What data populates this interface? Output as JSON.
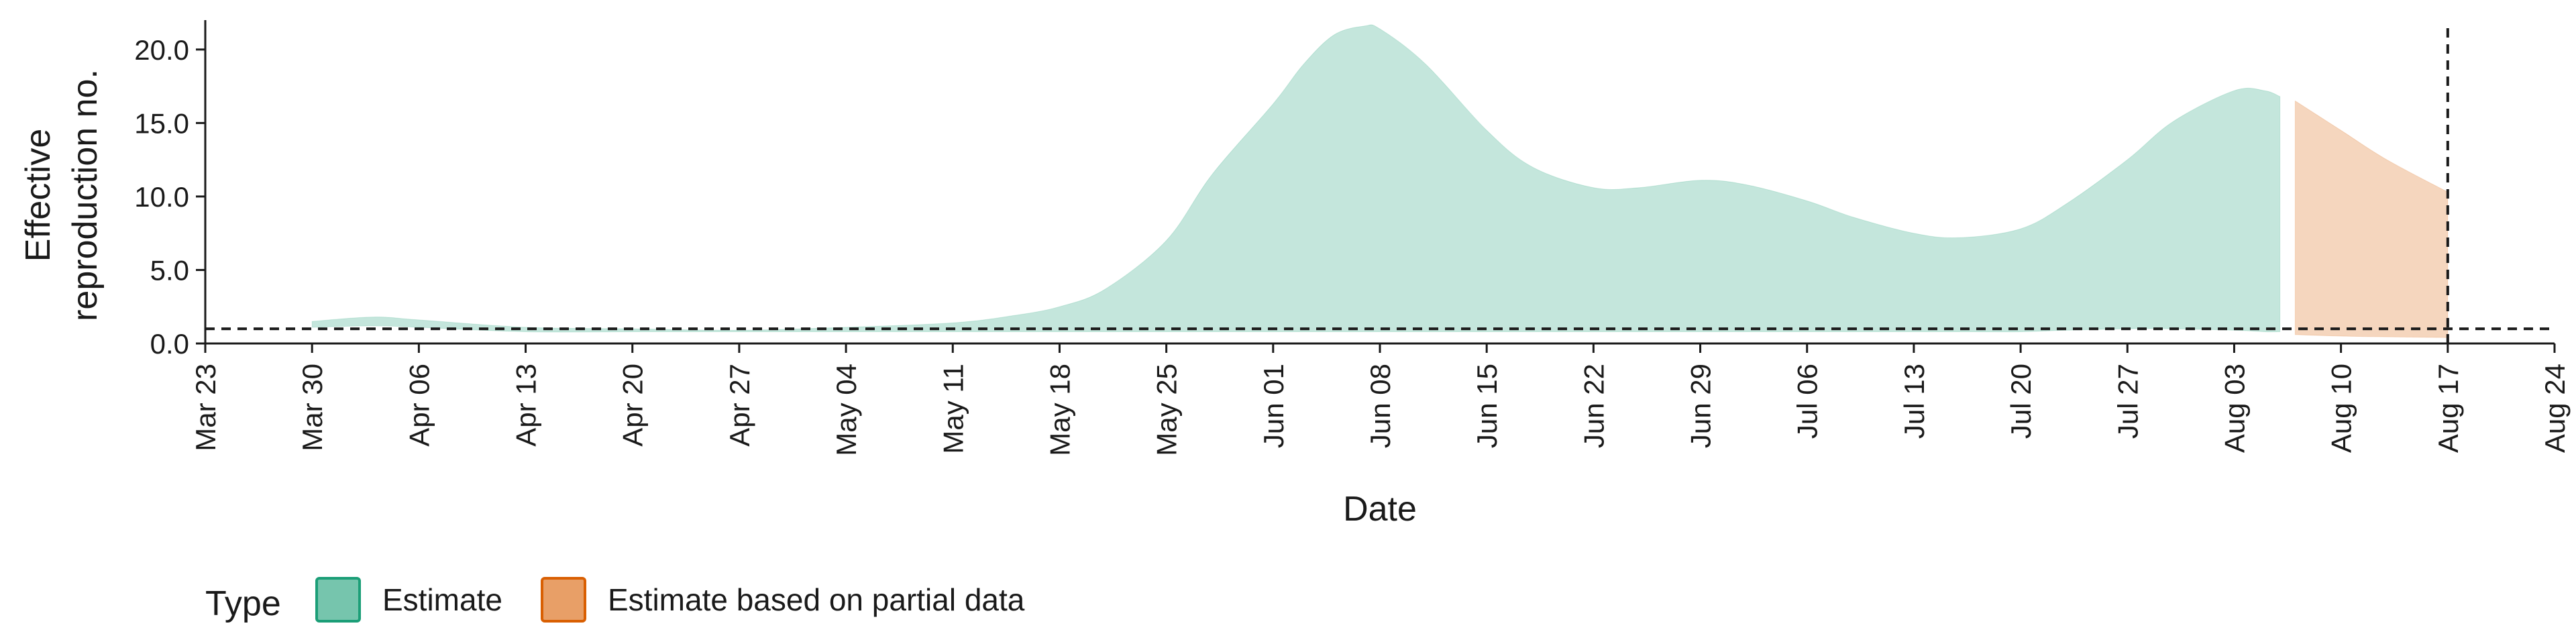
{
  "chart_data": {
    "type": "area",
    "xlabel": "Date",
    "ylabel_lines": [
      "Effective",
      "reproduction no."
    ],
    "ylim": [
      0,
      22
    ],
    "yticks": [
      0,
      5,
      10,
      15,
      20
    ],
    "ytick_labels": [
      "0.0",
      "5.0",
      "10.0",
      "15.0",
      "20.0"
    ],
    "xlim": [
      "2020-03-23",
      "2020-08-24"
    ],
    "xticks": [
      "2020-03-23",
      "2020-03-30",
      "2020-04-06",
      "2020-04-13",
      "2020-04-20",
      "2020-04-27",
      "2020-05-04",
      "2020-05-11",
      "2020-05-18",
      "2020-05-25",
      "2020-06-01",
      "2020-06-08",
      "2020-06-15",
      "2020-06-22",
      "2020-06-29",
      "2020-07-06",
      "2020-07-13",
      "2020-07-20",
      "2020-07-27",
      "2020-08-03",
      "2020-08-10",
      "2020-08-17",
      "2020-08-24"
    ],
    "xtick_labels": [
      "Mar 23",
      "Mar 30",
      "Apr 06",
      "Apr 13",
      "Apr 20",
      "Apr 27",
      "May 04",
      "May 11",
      "May 18",
      "May 25",
      "Jun 01",
      "Jun 08",
      "Jun 15",
      "Jun 22",
      "Jun 29",
      "Jul 06",
      "Jul 13",
      "Jul 20",
      "Jul 27",
      "Aug 03",
      "Aug 10",
      "Aug 17",
      "Aug 24"
    ],
    "hline": 1.0,
    "vline": "2020-08-17",
    "series": [
      {
        "name": "Estimate",
        "color": "#1b9e77",
        "x": [
          "2020-03-30",
          "2020-04-03",
          "2020-04-06",
          "2020-04-13",
          "2020-04-20",
          "2020-04-27",
          "2020-05-04",
          "2020-05-11",
          "2020-05-15",
          "2020-05-18",
          "2020-05-21",
          "2020-05-25",
          "2020-05-28",
          "2020-06-01",
          "2020-06-03",
          "2020-06-05",
          "2020-06-07",
          "2020-06-08",
          "2020-06-11",
          "2020-06-15",
          "2020-06-18",
          "2020-06-22",
          "2020-06-25",
          "2020-06-29",
          "2020-07-02",
          "2020-07-06",
          "2020-07-09",
          "2020-07-13",
          "2020-07-16",
          "2020-07-20",
          "2020-07-23",
          "2020-07-27",
          "2020-07-30",
          "2020-08-03",
          "2020-08-05",
          "2020-08-06"
        ],
        "upper": [
          1.5,
          1.8,
          1.6,
          1.1,
          1.0,
          0.9,
          1.1,
          1.4,
          1.9,
          2.5,
          3.7,
          7.0,
          11.5,
          16.3,
          19.0,
          21.0,
          21.6,
          21.4,
          19.0,
          14.5,
          12.0,
          10.6,
          10.6,
          11.1,
          10.8,
          9.7,
          8.6,
          7.5,
          7.2,
          7.8,
          9.5,
          12.5,
          15.1,
          17.2,
          17.2,
          16.8
        ],
        "lower": [
          1.1,
          1.2,
          1.1,
          0.8,
          0.8,
          0.8,
          0.8,
          0.8,
          0.8,
          0.8,
          0.8,
          0.8,
          0.8,
          0.8,
          0.8,
          0.8,
          0.8,
          0.8,
          0.8,
          0.8,
          0.8,
          0.8,
          0.8,
          0.8,
          0.8,
          0.8,
          0.8,
          0.8,
          0.8,
          0.8,
          0.9,
          1.0,
          1.0,
          0.9,
          0.8,
          0.8
        ]
      },
      {
        "name": "Estimate based on partial data",
        "color": "#d95f02",
        "x": [
          "2020-08-07",
          "2020-08-10",
          "2020-08-13",
          "2020-08-17"
        ],
        "upper": [
          16.5,
          14.5,
          12.5,
          10.3
        ],
        "lower": [
          0.6,
          0.5,
          0.45,
          0.4
        ]
      }
    ],
    "legend_title": "Type",
    "legend_position": "bottom-left"
  }
}
